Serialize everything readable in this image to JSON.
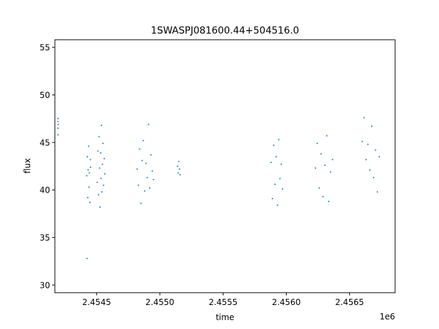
{
  "chart_data": {
    "type": "scatter",
    "title": "1SWASPJ081600.44+504516.0",
    "xlabel": "time",
    "ylabel": "flux",
    "x_offset_label": "1e6",
    "xlim": [
      2454170,
      2456860
    ],
    "ylim": [
      29.2,
      55.8
    ],
    "x_ticks": [
      2454500,
      2455000,
      2455500,
      2456000,
      2456500
    ],
    "x_tick_labels": [
      "2.4545",
      "2.4550",
      "2.4555",
      "2.4560",
      "2.4565"
    ],
    "y_ticks": [
      30,
      35,
      40,
      45,
      50,
      55
    ],
    "y_tick_labels": [
      "30",
      "35",
      "40",
      "45",
      "50",
      "55"
    ],
    "grid": false,
    "marker_color": "#1f77b4",
    "series": [
      {
        "x": [
          2454194,
          2454194,
          2454195,
          2454195,
          2454196,
          2454422,
          2454424,
          2454426,
          2454430,
          2454433,
          2454437,
          2454440,
          2454443,
          2454447,
          2454450,
          2454452,
          2454505,
          2454510,
          2454515,
          2454520,
          2454524,
          2454528,
          2454532,
          2454535,
          2454538,
          2454542,
          2454546,
          2454550,
          2454555,
          2454560,
          2454565,
          2454820,
          2454830,
          2454840,
          2454850,
          2454860,
          2454870,
          2454880,
          2454890,
          2454900,
          2454910,
          2454920,
          2454930,
          2454940,
          2454950,
          2455140,
          2455145,
          2455150,
          2455155,
          2455160,
          2455880,
          2455890,
          2455900,
          2455910,
          2455920,
          2455930,
          2455940,
          2455950,
          2455960,
          2455970,
          2456230,
          2456245,
          2456260,
          2456275,
          2456290,
          2456305,
          2456320,
          2456335,
          2456350,
          2456365,
          2456600,
          2456615,
          2456630,
          2456645,
          2456660,
          2456675,
          2456690,
          2456705,
          2456720,
          2456735
        ],
        "y": [
          47.2,
          46.5,
          45.8,
          47.5,
          46.9,
          41.5,
          32.8,
          43.5,
          39.2,
          42.1,
          44.6,
          40.3,
          41.8,
          38.7,
          43.2,
          42.4,
          40.8,
          44.1,
          39.5,
          45.6,
          42.3,
          38.2,
          43.9,
          41.2,
          46.8,
          39.8,
          42.7,
          44.9,
          40.5,
          43.3,
          41.7,
          42.2,
          40.5,
          44.3,
          38.6,
          43.1,
          45.2,
          39.9,
          42.8,
          41.3,
          46.9,
          40.2,
          43.7,
          42.0,
          41.1,
          42.5,
          41.8,
          43.0,
          42.2,
          41.6,
          42.9,
          39.1,
          44.7,
          40.6,
          43.5,
          38.4,
          45.3,
          41.2,
          42.7,
          40.1,
          42.3,
          44.9,
          40.2,
          43.8,
          39.3,
          42.6,
          45.7,
          38.8,
          41.9,
          43.2,
          45.1,
          47.6,
          43.2,
          44.8,
          42.1,
          46.7,
          41.3,
          44.2,
          39.8,
          43.5
        ]
      }
    ]
  }
}
